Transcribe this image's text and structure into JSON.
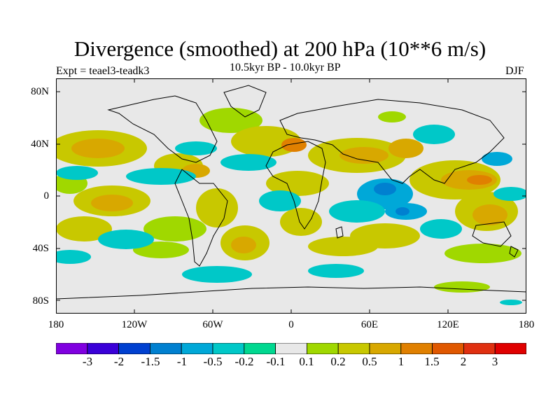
{
  "title": "Divergence (smoothed) at 200 hPa (10**6 m/s)",
  "experiment": "Expt = teael3-teadk3",
  "period": "10.5kyr BP - 10.0kyr BP",
  "season": "DJF",
  "lat_labels": [
    "80N",
    "40N",
    "0",
    "40S",
    "80S"
  ],
  "lon_labels": [
    "180",
    "120W",
    "60W",
    "0",
    "60E",
    "120E",
    "180"
  ],
  "colorbar": {
    "labels": [
      "-3",
      "-2",
      "-1.5",
      "-1",
      "-0.5",
      "-0.2",
      "-0.1",
      "0.1",
      "0.2",
      "0.5",
      "1",
      "1.5",
      "2",
      "3"
    ],
    "colors": [
      "#8000e0",
      "#3a00d8",
      "#0040d0",
      "#0080d0",
      "#00a8d8",
      "#00c8c8",
      "#00d890",
      "#e8e8e8",
      "#a0d800",
      "#c8c800",
      "#d8a800",
      "#e08000",
      "#e05800",
      "#e03010",
      "#e00000"
    ]
  },
  "colors": {
    "land_outline": "#000000",
    "background": "#e8e8e8"
  }
}
